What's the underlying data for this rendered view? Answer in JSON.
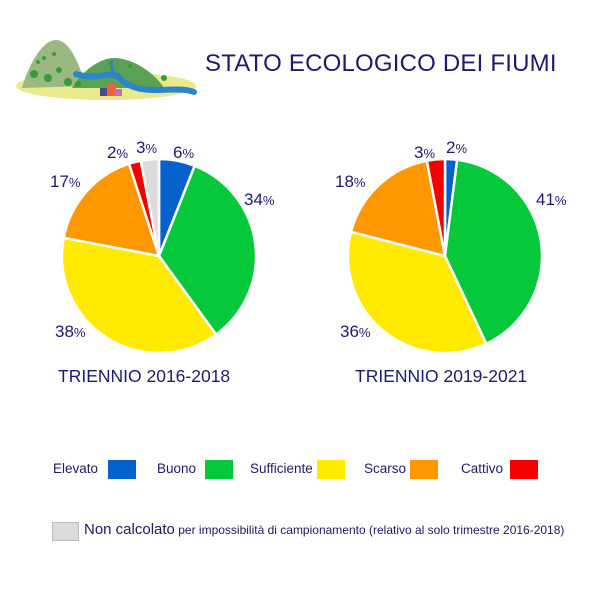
{
  "header": {
    "title": "STATO ECOLOGICO DEI FIUMI",
    "logo_icon": "river-landscape-icon"
  },
  "colors": {
    "Elevato": "#0561cc",
    "Buono": "#05c93a",
    "Sufficiente": "#ffea00",
    "Scarso": "#ff9700",
    "Cattivo": "#f30000",
    "Non calcolato": "#dcdcdc",
    "text": "#1f1a6e"
  },
  "charts": [
    {
      "caption": "TRIENNIO 2016-2018",
      "labels": [
        {
          "value": "6",
          "unit": "%"
        },
        {
          "value": "34",
          "unit": "%"
        },
        {
          "value": "38",
          "unit": "%"
        },
        {
          "value": "17",
          "unit": "%"
        },
        {
          "value": "2",
          "unit": "%"
        },
        {
          "value": "3",
          "unit": "%"
        }
      ]
    },
    {
      "caption": "TRIENNIO 2019-2021",
      "labels": [
        {
          "value": "2",
          "unit": "%"
        },
        {
          "value": "41",
          "unit": "%"
        },
        {
          "value": "36",
          "unit": "%"
        },
        {
          "value": "18",
          "unit": "%"
        },
        {
          "value": "3",
          "unit": "%"
        }
      ]
    }
  ],
  "legend": {
    "items": [
      {
        "label": "Elevato"
      },
      {
        "label": "Buono"
      },
      {
        "label": "Sufficiente"
      },
      {
        "label": "Scarso"
      },
      {
        "label": "Cattivo"
      }
    ],
    "note_main": "Non calcolato",
    "note_detail": " per impossibilità di campionamento (relativo al solo trimestre 2016-2018)"
  },
  "chart_data": [
    {
      "type": "pie",
      "title": "TRIENNIO 2016-2018",
      "categories": [
        "Elevato",
        "Buono",
        "Sufficiente",
        "Scarso",
        "Cattivo",
        "Non calcolato"
      ],
      "values": [
        6,
        34,
        38,
        17,
        2,
        3
      ],
      "unit": "%",
      "start_angle": "12 o'clock, clockwise",
      "legend_position": "bottom"
    },
    {
      "type": "pie",
      "title": "TRIENNIO 2019-2021",
      "categories": [
        "Elevato",
        "Buono",
        "Sufficiente",
        "Scarso",
        "Cattivo"
      ],
      "values": [
        2,
        41,
        36,
        18,
        3
      ],
      "unit": "%",
      "start_angle": "12 o'clock, clockwise",
      "legend_position": "bottom"
    }
  ]
}
